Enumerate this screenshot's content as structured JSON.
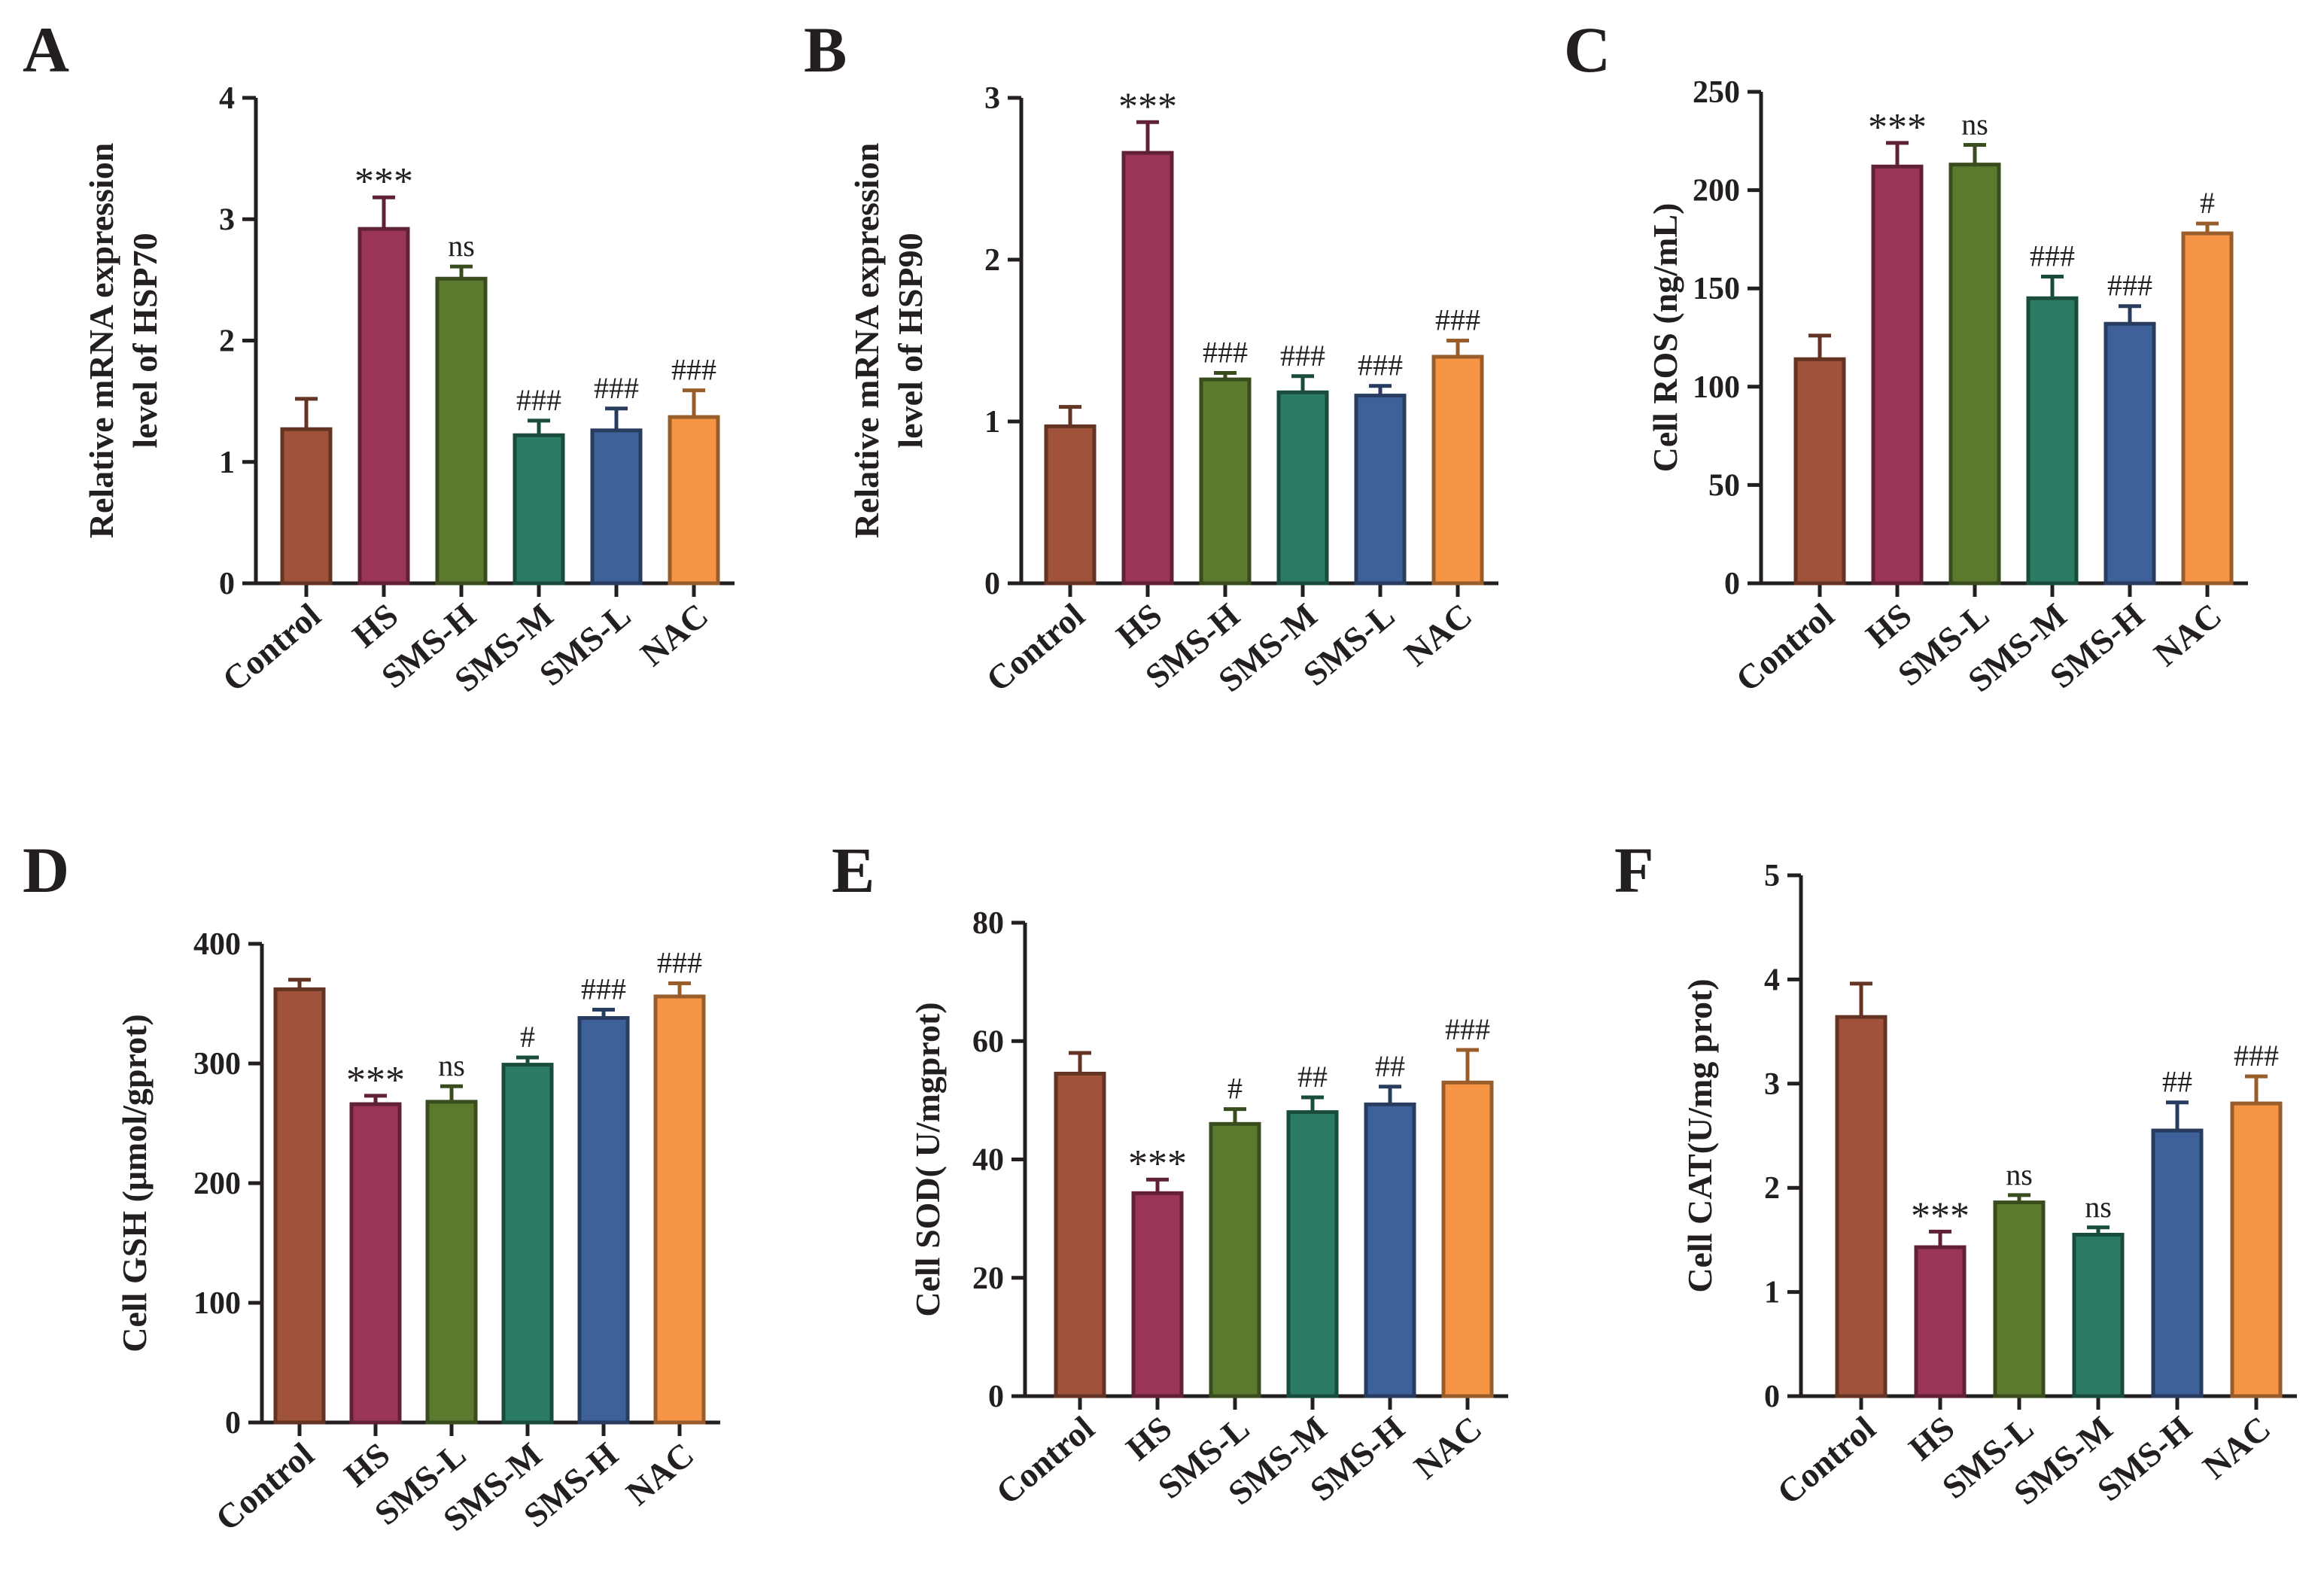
{
  "figure": {
    "description_free": true
  },
  "palette": {
    "Control": "#a0523a",
    "HS": "#9b3558",
    "SMS-L_or_H_green": "#5c7a2e",
    "SMS-M": "#2a7a64",
    "blue": "#3f619a",
    "NAC": "#f79546"
  },
  "chart_data": [
    {
      "letter": "A",
      "type": "bar",
      "title": "",
      "xlabel": "",
      "ylabel": [
        "Relative mRNA expression",
        "level of HSP70"
      ],
      "ylim": [
        0,
        4
      ],
      "yticks": [
        0,
        1,
        2,
        3,
        4
      ],
      "categories": [
        "Control",
        "HS",
        "SMS-H",
        "SMS-M",
        "SMS-L",
        "NAC"
      ],
      "values": [
        1.27,
        2.92,
        2.51,
        1.22,
        1.26,
        1.37
      ],
      "errors": [
        0.25,
        0.26,
        0.1,
        0.12,
        0.18,
        0.22
      ],
      "annotations": [
        "",
        "***",
        "ns",
        "###",
        "###",
        "###"
      ],
      "colors": [
        "#a0523a",
        "#9b3558",
        "#5c7a2e",
        "#2a7a64",
        "#3f619a",
        "#f79546"
      ]
    },
    {
      "letter": "B",
      "type": "bar",
      "title": "",
      "xlabel": "",
      "ylabel": [
        "Relative mRNA expression",
        "level of HSP90"
      ],
      "ylim": [
        0,
        3
      ],
      "yticks": [
        0,
        1,
        2,
        3
      ],
      "categories": [
        "Control",
        "HS",
        "SMS-H",
        "SMS-M",
        "SMS-L",
        "NAC"
      ],
      "values": [
        0.97,
        2.66,
        1.26,
        1.18,
        1.16,
        1.4
      ],
      "errors": [
        0.12,
        0.19,
        0.04,
        0.1,
        0.06,
        0.1
      ],
      "annotations": [
        "",
        "***",
        "###",
        "###",
        "###",
        "###"
      ],
      "colors": [
        "#a0523a",
        "#9b3558",
        "#5c7a2e",
        "#2a7a64",
        "#3f619a",
        "#f79546"
      ]
    },
    {
      "letter": "C",
      "type": "bar",
      "title": "",
      "xlabel": "",
      "ylabel": [
        "Cell ROS (ng/mL)"
      ],
      "ylim": [
        0,
        250
      ],
      "yticks": [
        0,
        50,
        100,
        150,
        200,
        250
      ],
      "categories": [
        "Control",
        "HS",
        "SMS-L",
        "SMS-M",
        "SMS-H",
        "NAC"
      ],
      "values": [
        114,
        212,
        213,
        145,
        132,
        178
      ],
      "errors": [
        12,
        12,
        10,
        11,
        9,
        5
      ],
      "annotations": [
        "",
        "***",
        "ns",
        "###",
        "###",
        "#"
      ],
      "colors": [
        "#a0523a",
        "#9b3558",
        "#5c7a2e",
        "#2a7a64",
        "#3f619a",
        "#f79546"
      ]
    },
    {
      "letter": "D",
      "type": "bar",
      "title": "",
      "xlabel": "",
      "ylabel": [
        "Cell GSH (μmol/gprot)"
      ],
      "ylim": [
        0,
        400
      ],
      "yticks": [
        0,
        100,
        200,
        300,
        400
      ],
      "categories": [
        "Control",
        "HS",
        "SMS-L",
        "SMS-M",
        "SMS-H",
        "NAC"
      ],
      "values": [
        362,
        266,
        268,
        299,
        338,
        356
      ],
      "errors": [
        8,
        7,
        13,
        6,
        7,
        11
      ],
      "annotations": [
        "",
        "***",
        "ns",
        "#",
        "###",
        "###"
      ],
      "colors": [
        "#a0523a",
        "#9b3558",
        "#5c7a2e",
        "#2a7a64",
        "#3f619a",
        "#f79546"
      ]
    },
    {
      "letter": "E",
      "type": "bar",
      "title": "",
      "xlabel": "",
      "ylabel": [
        "Cell SOD( U/mgprot)"
      ],
      "ylim": [
        0,
        80
      ],
      "yticks": [
        0,
        20,
        40,
        60,
        80
      ],
      "categories": [
        "Control",
        "HS",
        "SMS-L",
        "SMS-M",
        "SMS-H",
        "NAC"
      ],
      "values": [
        54.5,
        34.3,
        46.0,
        48.0,
        49.3,
        53.0
      ],
      "errors": [
        3.5,
        2.3,
        2.5,
        2.5,
        3.0,
        5.5
      ],
      "annotations": [
        "",
        "***",
        "#",
        "##",
        "##",
        "###"
      ],
      "colors": [
        "#a0523a",
        "#9b3558",
        "#5c7a2e",
        "#2a7a64",
        "#3f619a",
        "#f79546"
      ]
    },
    {
      "letter": "F",
      "type": "bar",
      "title": "",
      "xlabel": "",
      "ylabel": [
        "Cell CAT(U/mg prot)"
      ],
      "ylim": [
        0,
        5
      ],
      "yticks": [
        0,
        1,
        2,
        3,
        4,
        5
      ],
      "categories": [
        "Control",
        "HS",
        "SMS-L",
        "SMS-M",
        "SMS-H",
        "NAC"
      ],
      "values": [
        3.64,
        1.43,
        1.86,
        1.55,
        2.55,
        2.81
      ],
      "errors": [
        0.32,
        0.15,
        0.07,
        0.07,
        0.27,
        0.26
      ],
      "annotations": [
        "",
        "***",
        "ns",
        "ns",
        "##",
        "###"
      ],
      "colors": [
        "#a0523a",
        "#9b3558",
        "#5c7a2e",
        "#2a7a64",
        "#3f619a",
        "#f79546"
      ]
    }
  ]
}
